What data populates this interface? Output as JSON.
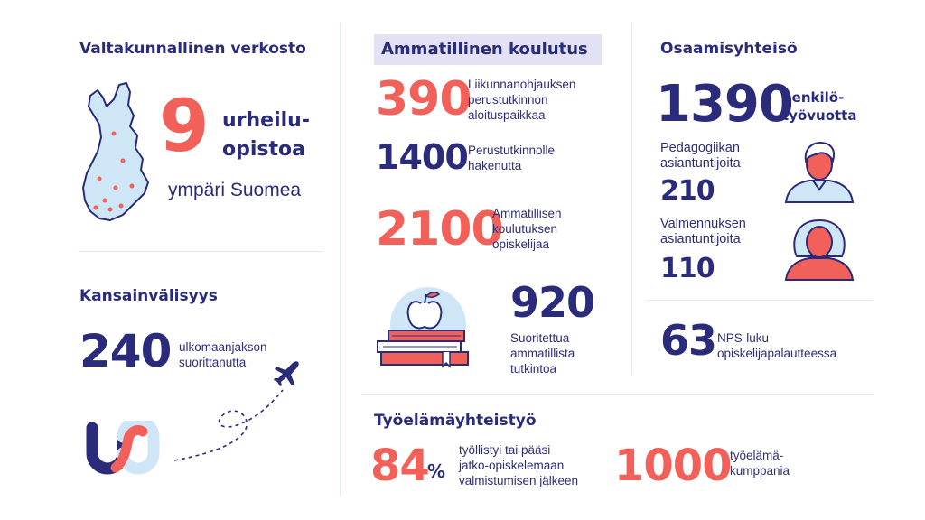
{
  "network": {
    "title": "Valtakunnallinen verkosto",
    "count": "9",
    "label": "urheilu-\nopistoa",
    "sub": "ympäri Suomea"
  },
  "international": {
    "title": "Kansainvälisyys",
    "number": "240",
    "desc": "ulkomaanjakson\nsuorittanutta"
  },
  "vocational": {
    "title": "Ammatillinen koulutus",
    "stats": [
      {
        "number": "390",
        "desc": "Liikunnanohjauksen\nperustutkinnon\naloituspaikkaa"
      },
      {
        "number": "1400",
        "desc": "Perustutkinnolle\nhakenutta"
      },
      {
        "number": "2100",
        "desc": "Ammatillisen\nkoulutuksen\nopiskelijaa"
      },
      {
        "number": "920",
        "desc": "Suoritettua\nammatillista\ntutkintoa"
      }
    ]
  },
  "community": {
    "title": "Osaamisyhteisö",
    "years_number": "1390",
    "years_label": "henkilö-\ntyövuotta",
    "ped_label": "Pedagogiikan\nasiantuntijoita",
    "ped_number": "210",
    "coach_label": "Valmennuksen\nasiantuntijoita",
    "coach_number": "110",
    "nps_number": "63",
    "nps_label": "NPS-luku\nopiskelijapalautteessa"
  },
  "worklife": {
    "title": "Työelämäyhteistyö",
    "pct_number": "84",
    "pct_sign": "%",
    "pct_desc": "työllistyi tai pääsi\njatko-opiskelemaan\nvalmistumisen jälkeen",
    "partners_number": "1000",
    "partners_desc": "työelämä-\nkumppania"
  },
  "colors": {
    "navy": "#2b2b7c",
    "coral": "#f2605a",
    "lightblue": "#cfe6f7",
    "lavender": "#e2e2f4"
  }
}
